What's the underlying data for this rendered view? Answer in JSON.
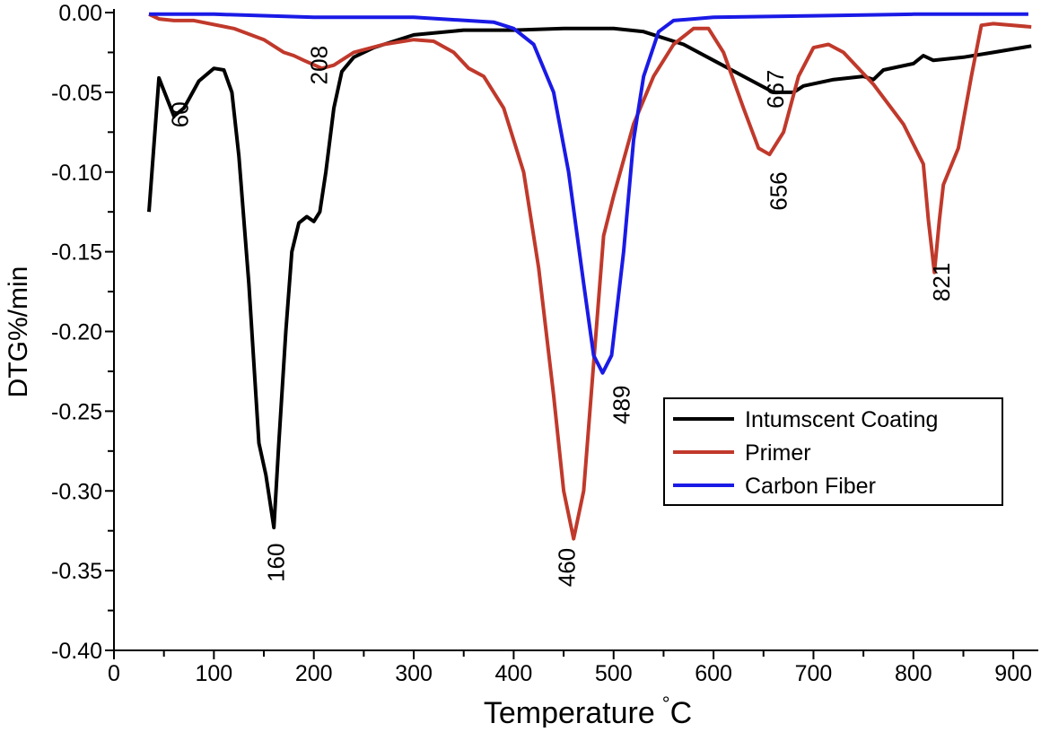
{
  "chart_data": {
    "type": "line",
    "title": "",
    "xlabel": "Temperature",
    "xlabel_unit": "°C",
    "ylabel": "DTG%/min",
    "xlim": [
      0,
      925
    ],
    "ylim": [
      -0.4,
      0.0
    ],
    "x_ticks": [
      0,
      100,
      200,
      300,
      400,
      500,
      600,
      700,
      800,
      900
    ],
    "y_ticks": [
      0.0,
      -0.05,
      -0.1,
      -0.15,
      -0.2,
      -0.25,
      -0.3,
      -0.35,
      -0.4
    ],
    "y_tick_labels": [
      "0.00",
      "-0.05",
      "-0.10",
      "-0.15",
      "-0.20",
      "-0.25",
      "-0.30",
      "-0.35",
      "-0.40"
    ],
    "legend_position": "center-right",
    "series": [
      {
        "name": "Intumscent Coating",
        "color": "#000000",
        "points": [
          [
            35,
            -0.125
          ],
          [
            45,
            -0.041
          ],
          [
            60,
            -0.065
          ],
          [
            70,
            -0.06
          ],
          [
            85,
            -0.043
          ],
          [
            100,
            -0.035
          ],
          [
            110,
            -0.036
          ],
          [
            118,
            -0.05
          ],
          [
            125,
            -0.09
          ],
          [
            135,
            -0.17
          ],
          [
            145,
            -0.27
          ],
          [
            152,
            -0.29
          ],
          [
            160,
            -0.323
          ],
          [
            165,
            -0.27
          ],
          [
            172,
            -0.2
          ],
          [
            178,
            -0.15
          ],
          [
            185,
            -0.132
          ],
          [
            193,
            -0.128
          ],
          [
            200,
            -0.131
          ],
          [
            206,
            -0.125
          ],
          [
            212,
            -0.1
          ],
          [
            220,
            -0.06
          ],
          [
            228,
            -0.037
          ],
          [
            240,
            -0.028
          ],
          [
            260,
            -0.022
          ],
          [
            300,
            -0.014
          ],
          [
            350,
            -0.011
          ],
          [
            400,
            -0.011
          ],
          [
            450,
            -0.01
          ],
          [
            500,
            -0.01
          ],
          [
            530,
            -0.012
          ],
          [
            570,
            -0.02
          ],
          [
            600,
            -0.03
          ],
          [
            630,
            -0.04
          ],
          [
            660,
            -0.05
          ],
          [
            680,
            -0.05
          ],
          [
            690,
            -0.046
          ],
          [
            720,
            -0.042
          ],
          [
            750,
            -0.04
          ],
          [
            760,
            -0.042
          ],
          [
            770,
            -0.036
          ],
          [
            800,
            -0.032
          ],
          [
            810,
            -0.027
          ],
          [
            820,
            -0.03
          ],
          [
            850,
            -0.028
          ],
          [
            880,
            -0.025
          ],
          [
            918,
            -0.021
          ]
        ]
      },
      {
        "name": "Primer",
        "color": "#c0392b",
        "points": [
          [
            35,
            -0.001
          ],
          [
            45,
            -0.004
          ],
          [
            60,
            -0.005
          ],
          [
            80,
            -0.005
          ],
          [
            120,
            -0.01
          ],
          [
            150,
            -0.017
          ],
          [
            170,
            -0.025
          ],
          [
            180,
            -0.027
          ],
          [
            190,
            -0.03
          ],
          [
            208,
            -0.035
          ],
          [
            220,
            -0.033
          ],
          [
            240,
            -0.025
          ],
          [
            270,
            -0.02
          ],
          [
            300,
            -0.017
          ],
          [
            320,
            -0.018
          ],
          [
            340,
            -0.025
          ],
          [
            355,
            -0.035
          ],
          [
            370,
            -0.04
          ],
          [
            390,
            -0.06
          ],
          [
            410,
            -0.1
          ],
          [
            425,
            -0.16
          ],
          [
            440,
            -0.24
          ],
          [
            450,
            -0.3
          ],
          [
            460,
            -0.33
          ],
          [
            470,
            -0.3
          ],
          [
            480,
            -0.22
          ],
          [
            490,
            -0.14
          ],
          [
            500,
            -0.115
          ],
          [
            520,
            -0.07
          ],
          [
            540,
            -0.04
          ],
          [
            560,
            -0.02
          ],
          [
            580,
            -0.01
          ],
          [
            595,
            -0.01
          ],
          [
            610,
            -0.025
          ],
          [
            630,
            -0.06
          ],
          [
            645,
            -0.085
          ],
          [
            656,
            -0.089
          ],
          [
            670,
            -0.075
          ],
          [
            685,
            -0.04
          ],
          [
            700,
            -0.022
          ],
          [
            715,
            -0.02
          ],
          [
            730,
            -0.025
          ],
          [
            760,
            -0.045
          ],
          [
            790,
            -0.07
          ],
          [
            810,
            -0.095
          ],
          [
            815,
            -0.13
          ],
          [
            821,
            -0.163
          ],
          [
            826,
            -0.13
          ],
          [
            830,
            -0.108
          ],
          [
            845,
            -0.085
          ],
          [
            858,
            -0.04
          ],
          [
            868,
            -0.008
          ],
          [
            880,
            -0.007
          ],
          [
            918,
            -0.009
          ]
        ]
      },
      {
        "name": "Carbon Fiber",
        "color": "#1a1ae6",
        "points": [
          [
            35,
            -0.001
          ],
          [
            100,
            -0.001
          ],
          [
            200,
            -0.003
          ],
          [
            300,
            -0.003
          ],
          [
            380,
            -0.006
          ],
          [
            400,
            -0.01
          ],
          [
            420,
            -0.02
          ],
          [
            440,
            -0.05
          ],
          [
            455,
            -0.1
          ],
          [
            470,
            -0.17
          ],
          [
            480,
            -0.215
          ],
          [
            489,
            -0.226
          ],
          [
            498,
            -0.215
          ],
          [
            510,
            -0.15
          ],
          [
            520,
            -0.08
          ],
          [
            530,
            -0.04
          ],
          [
            545,
            -0.012
          ],
          [
            560,
            -0.005
          ],
          [
            600,
            -0.003
          ],
          [
            700,
            -0.002
          ],
          [
            800,
            -0.001
          ],
          [
            915,
            -0.001
          ]
        ]
      }
    ],
    "annotations": [
      {
        "text": "60",
        "x": 66,
        "y": -0.064
      },
      {
        "text": "208",
        "x": 205,
        "y": -0.033
      },
      {
        "text": "160",
        "x": 162,
        "y": -0.345
      },
      {
        "text": "460",
        "x": 453,
        "y": -0.348
      },
      {
        "text": "489",
        "x": 508,
        "y": -0.246
      },
      {
        "text": "667",
        "x": 662,
        "y": -0.048
      },
      {
        "text": "656",
        "x": 665,
        "y": -0.112
      },
      {
        "text": "821",
        "x": 828,
        "y": -0.169
      }
    ]
  }
}
